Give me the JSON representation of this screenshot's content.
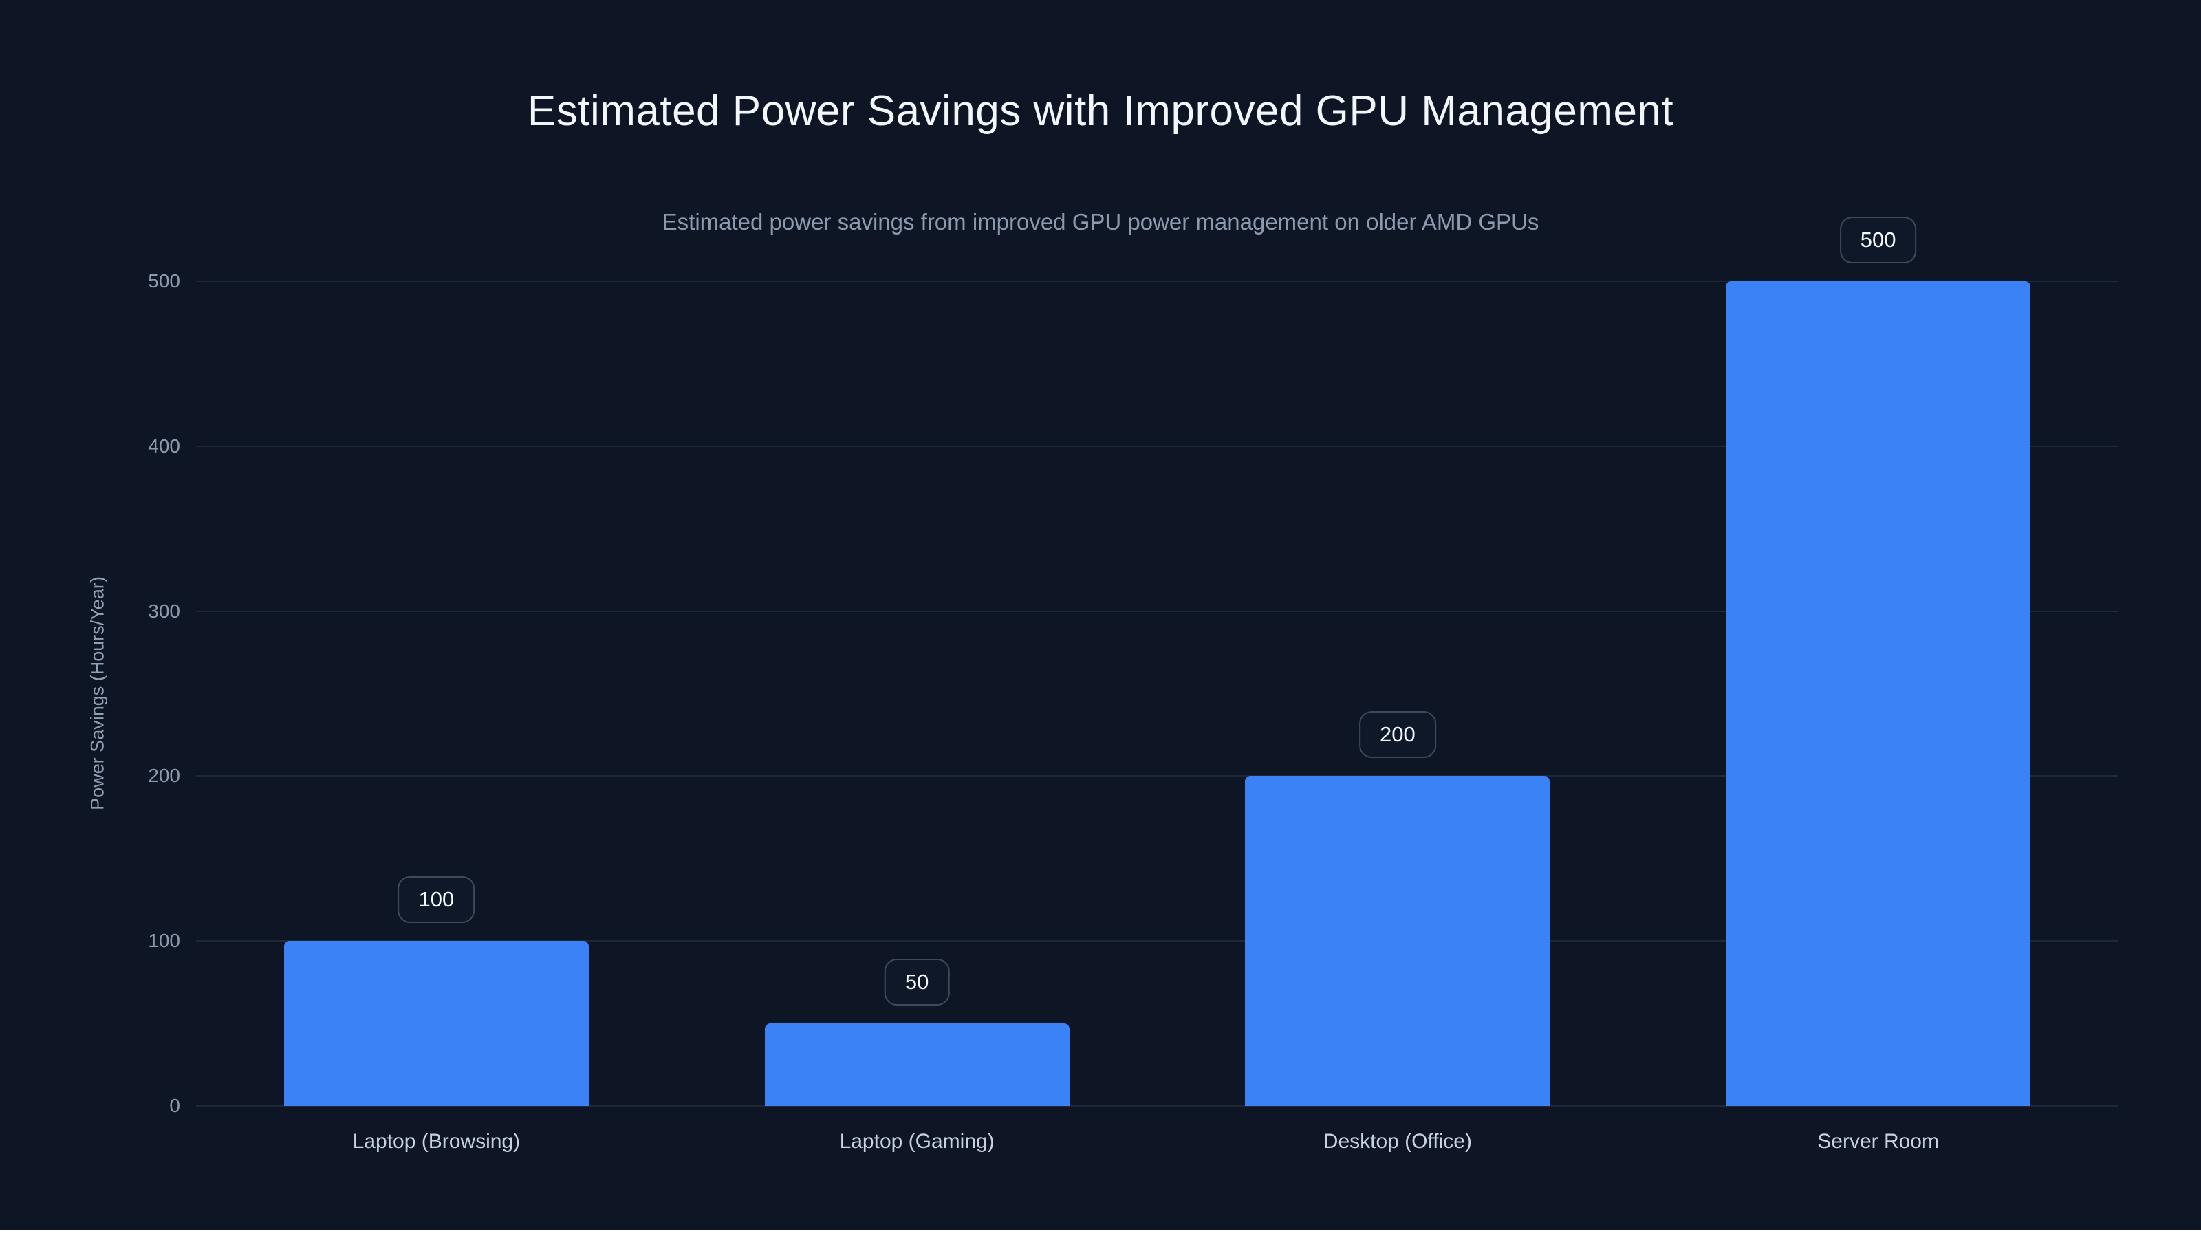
{
  "page": {
    "title": "Estimated Power Savings with Improved GPU Management"
  },
  "chart_data": {
    "type": "bar",
    "title": "Estimated Power Savings with Improved GPU Management",
    "subtitle": "Estimated power savings from improved GPU power management on older AMD GPUs",
    "categories": [
      "Laptop (Browsing)",
      "Laptop (Gaming)",
      "Desktop (Office)",
      "Server Room"
    ],
    "values": [
      100,
      50,
      200,
      500
    ],
    "data_labels": [
      "100",
      "50",
      "200",
      "500"
    ],
    "xlabel": "",
    "ylabel": "Power Savings (Hours/Year)",
    "ylim": [
      0,
      500
    ],
    "yticks": [
      0,
      100,
      200,
      300,
      400,
      500
    ],
    "grid": true,
    "legend_position": "none",
    "bar_color": "#3b82f6",
    "background_color": "#0e1626",
    "gridline_color": "rgba(148,163,184,0.13)",
    "label_box_border_color": "#3e4a5c",
    "text_color": "#f3f6fa",
    "muted_text_color": "#8d9aae"
  }
}
